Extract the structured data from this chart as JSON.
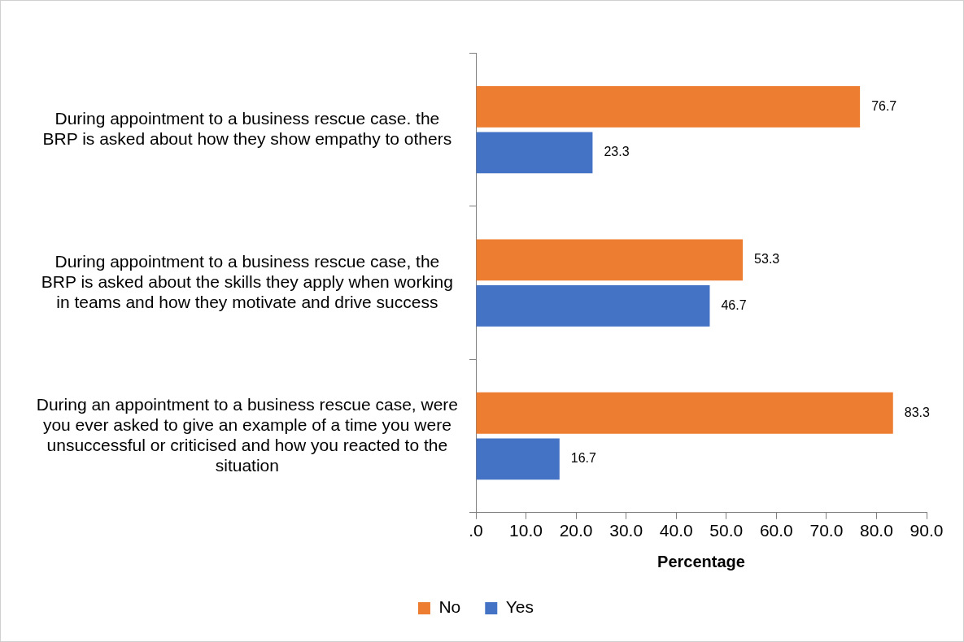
{
  "chart_data": {
    "type": "bar",
    "orientation": "horizontal",
    "xlabel": "Percentage",
    "categories": [
      "During appointment to a business rescue case. the BRP is asked about how they show empathy to others",
      "During appointment to a business rescue case, the BRP is asked about the skills they apply when working in teams and how they motivate and drive success",
      "During an appointment to a business rescue case, were you ever asked to give an example of a time you were unsuccessful or criticised and how you reacted to the situation"
    ],
    "series": [
      {
        "name": "No",
        "color": "#ed7d31",
        "values": [
          76.7,
          53.3,
          83.3
        ]
      },
      {
        "name": "Yes",
        "color": "#4472c4",
        "values": [
          23.3,
          46.7,
          16.7
        ]
      }
    ],
    "xlim": [
      0,
      90
    ],
    "xticks": [
      {
        "value": 0,
        "label": ".0"
      },
      {
        "value": 10,
        "label": "10.0"
      },
      {
        "value": 20,
        "label": "20.0"
      },
      {
        "value": 30,
        "label": "30.0"
      },
      {
        "value": 40,
        "label": "40.0"
      },
      {
        "value": 50,
        "label": "50.0"
      },
      {
        "value": 60,
        "label": "60.0"
      },
      {
        "value": 70,
        "label": "70.0"
      },
      {
        "value": 80,
        "label": "80.0"
      },
      {
        "value": 90,
        "label": "90.0"
      }
    ],
    "grid": false,
    "legend": "bottom",
    "data_labels": true
  }
}
